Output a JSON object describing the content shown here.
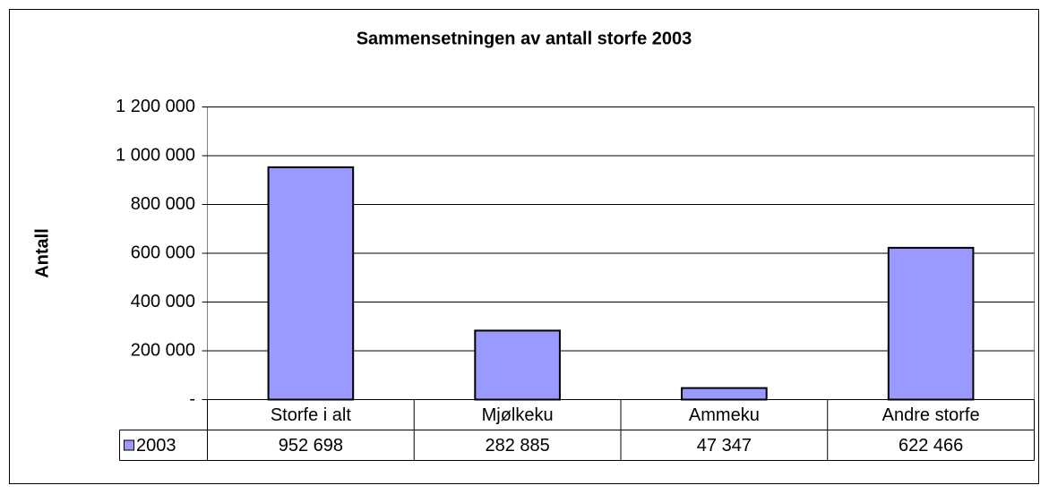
{
  "chart_data": {
    "type": "bar",
    "title": "Sammensetningen av antall storfe 2003",
    "y_label": "Antall",
    "categories": [
      "Storfe i alt",
      "Mjølkeku",
      "Ammeku",
      "Andre storfe"
    ],
    "series": [
      {
        "name": "2003",
        "color": "#9999ff",
        "values": [
          952698,
          282885,
          47347,
          622466
        ],
        "value_labels": [
          "952 698",
          "282 885",
          "47 347",
          "622 466"
        ]
      }
    ],
    "ylim": [
      0,
      1200000
    ],
    "yticks": [
      {
        "value": 0,
        "label": "-"
      },
      {
        "value": 200000,
        "label": "200 000"
      },
      {
        "value": 400000,
        "label": "400 000"
      },
      {
        "value": 600000,
        "label": "600 000"
      },
      {
        "value": 800000,
        "label": "800 000"
      },
      {
        "value": 1000000,
        "label": "1 000 000"
      },
      {
        "value": 1200000,
        "label": "1 200 000"
      }
    ],
    "grid": true
  }
}
